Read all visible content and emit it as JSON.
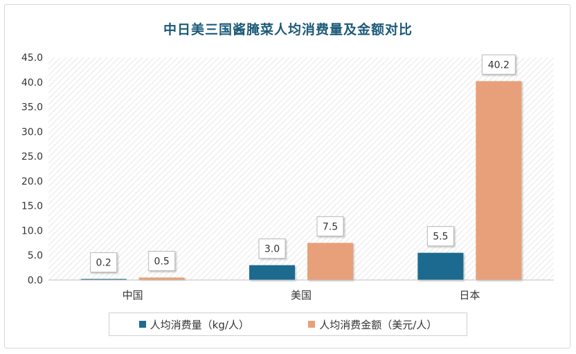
{
  "chart_data": {
    "type": "bar",
    "title": "中日美三国酱腌菜人均消费量及金额对比",
    "categories": [
      "中国",
      "美国",
      "日本"
    ],
    "ylim": [
      0,
      45
    ],
    "yticks": [
      "0.0",
      "5.0",
      "10.0",
      "15.0",
      "20.0",
      "25.0",
      "30.0",
      "35.0",
      "40.0",
      "45.0"
    ],
    "grid": false,
    "legend_position": "bottom",
    "series": [
      {
        "name": "人均消费量（kg/人）",
        "values": [
          0.2,
          3.0,
          5.5
        ],
        "labels": [
          "0.2",
          "3.0",
          "5.5"
        ],
        "color": "#1f6a8f"
      },
      {
        "name": "人均消费金额（美元/人）",
        "values": [
          0.5,
          7.5,
          40.2
        ],
        "labels": [
          "0.5",
          "7.5",
          "40.2"
        ],
        "color": "#e8a07a"
      }
    ]
  }
}
